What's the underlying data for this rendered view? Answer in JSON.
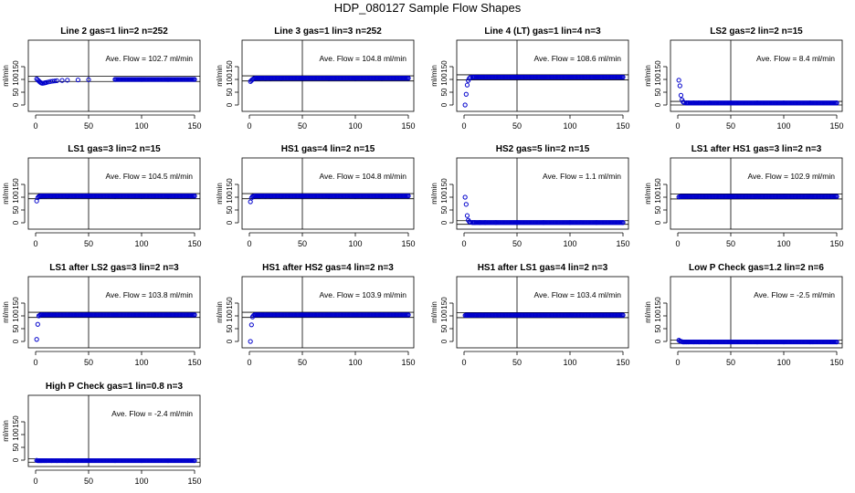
{
  "figure": {
    "title": "HDP_080127  Sample Flow Shapes"
  },
  "chart_data": [
    {
      "type": "scatter",
      "title": "Line 2 gas=1 lin=2 n=252",
      "ylabel": "ml/min",
      "annotation": "Ave. Flow =  102.7  ml/min",
      "xlim": [
        0,
        150
      ],
      "ylim": [
        -20,
        200
      ],
      "xticks": [
        0,
        50,
        100,
        150
      ],
      "yticks": [
        0,
        50,
        100,
        150
      ],
      "xticklabels": [
        "0",
        "50",
        "100",
        "150"
      ],
      "yticklabels": [
        "0",
        "50",
        "100",
        "150"
      ],
      "vline": 50,
      "hlines": [
        92,
        112
      ],
      "ave": 102.7,
      "series": [
        {
          "color": "#0000cc",
          "x": [
            1,
            2,
            3,
            4,
            5,
            6,
            7,
            8,
            9,
            10,
            12,
            14,
            16,
            18,
            20,
            25,
            30,
            40,
            50,
            75,
            100,
            125,
            150
          ],
          "y": [
            102,
            98,
            94,
            90,
            87,
            85,
            85,
            86,
            87,
            88,
            90,
            92,
            93,
            94,
            95,
            96,
            97,
            98,
            99,
            100,
            100,
            100,
            100
          ]
        }
      ]
    },
    {
      "type": "scatter",
      "title": "Line 3 gas=1 lin=3 n=252",
      "ylabel": "ml/min",
      "annotation": "Ave. Flow =  104.8  ml/min",
      "xlim": [
        0,
        150
      ],
      "ylim": [
        -20,
        200
      ],
      "xticks": [
        0,
        50,
        100,
        150
      ],
      "yticks": [
        0,
        50,
        100,
        150
      ],
      "xticklabels": [
        "0",
        "50",
        "100",
        "150"
      ],
      "yticklabels": [
        "0",
        "50",
        "100",
        "150"
      ],
      "vline": 50,
      "hlines": [
        94,
        114
      ],
      "ave": 104.8,
      "series": [
        {
          "color": "#0000cc",
          "x": [
            1,
            2,
            3,
            4,
            5,
            6,
            8,
            10,
            15,
            20,
            30,
            50,
            75,
            100,
            125,
            150
          ],
          "y": [
            92,
            96,
            100,
            103,
            104,
            105,
            105,
            105,
            105,
            105,
            105,
            105,
            105,
            105,
            105,
            105
          ]
        }
      ]
    },
    {
      "type": "scatter",
      "title": "Line 4 (LT) gas=1 lin=4 n=3",
      "ylabel": "ml/min",
      "annotation": "Ave. Flow =  108.6  ml/min",
      "xlim": [
        0,
        150
      ],
      "ylim": [
        -20,
        200
      ],
      "xticks": [
        0,
        50,
        100,
        150
      ],
      "yticks": [
        0,
        50,
        100,
        150
      ],
      "xticklabels": [
        "0",
        "50",
        "100",
        "150"
      ],
      "yticklabels": [
        "0",
        "50",
        "100",
        "150"
      ],
      "vline": 50,
      "hlines": [
        98,
        118
      ],
      "ave": 108.6,
      "series": [
        {
          "color": "#0000cc",
          "x": [
            1,
            2,
            3,
            4,
            5,
            6,
            8,
            10,
            15,
            20,
            30,
            50,
            75,
            100,
            125,
            150
          ],
          "y": [
            0,
            42,
            78,
            96,
            104,
            108,
            109,
            109,
            109,
            109,
            109,
            109,
            109,
            109,
            109,
            109
          ]
        }
      ]
    },
    {
      "type": "scatter",
      "title": "LS2 gas=2 lin=2 n=15",
      "ylabel": "ml/min",
      "annotation": "Ave. Flow =  8.4  ml/min",
      "xlim": [
        0,
        150
      ],
      "ylim": [
        -20,
        200
      ],
      "xticks": [
        0,
        50,
        100,
        150
      ],
      "yticks": [
        0,
        50,
        100,
        150
      ],
      "xticklabels": [
        "0",
        "50",
        "100",
        "150"
      ],
      "yticklabels": [
        "0",
        "50",
        "100",
        "150"
      ],
      "vline": 50,
      "hlines": [
        0,
        14
      ],
      "ave": 8.4,
      "series": [
        {
          "color": "#0000cc",
          "x": [
            1,
            2,
            3,
            4,
            5,
            6,
            8,
            10,
            15,
            20,
            30,
            50,
            75,
            100,
            125,
            150
          ],
          "y": [
            97,
            75,
            38,
            20,
            12,
            9,
            8,
            8,
            8,
            8,
            8,
            8,
            8,
            8,
            8,
            8
          ]
        }
      ]
    },
    {
      "type": "scatter",
      "title": "LS1 gas=3 lin=2 n=15",
      "ylabel": "ml/min",
      "annotation": "Ave. Flow =  104.5  ml/min",
      "xlim": [
        0,
        150
      ],
      "ylim": [
        -20,
        200
      ],
      "xticks": [
        0,
        50,
        100,
        150
      ],
      "yticks": [
        0,
        50,
        100,
        150
      ],
      "xticklabels": [
        "0",
        "50",
        "100",
        "150"
      ],
      "yticklabels": [
        "0",
        "50",
        "100",
        "150"
      ],
      "vline": 50,
      "hlines": [
        94,
        114
      ],
      "ave": 104.5,
      "series": [
        {
          "color": "#0000cc",
          "x": [
            1,
            2,
            3,
            4,
            5,
            6,
            8,
            10,
            15,
            20,
            30,
            50,
            75,
            100,
            125,
            150
          ],
          "y": [
            85,
            98,
            103,
            104,
            105,
            105,
            105,
            105,
            105,
            105,
            105,
            105,
            105,
            105,
            105,
            105
          ]
        }
      ]
    },
    {
      "type": "scatter",
      "title": "HS1 gas=4 lin=2 n=15",
      "ylabel": "ml/min",
      "annotation": "Ave. Flow =  104.8  ml/min",
      "xlim": [
        0,
        150
      ],
      "ylim": [
        -20,
        200
      ],
      "xticks": [
        0,
        50,
        100,
        150
      ],
      "yticks": [
        0,
        50,
        100,
        150
      ],
      "xticklabels": [
        "0",
        "50",
        "100",
        "150"
      ],
      "yticklabels": [
        "0",
        "50",
        "100",
        "150"
      ],
      "vline": 50,
      "hlines": [
        94,
        114
      ],
      "ave": 104.8,
      "series": [
        {
          "color": "#0000cc",
          "x": [
            1,
            2,
            3,
            4,
            5,
            6,
            8,
            10,
            15,
            20,
            30,
            50,
            75,
            100,
            125,
            150
          ],
          "y": [
            82,
            97,
            103,
            104,
            105,
            105,
            105,
            105,
            105,
            105,
            105,
            105,
            105,
            105,
            105,
            105
          ]
        }
      ]
    },
    {
      "type": "scatter",
      "title": "HS2 gas=5 lin=2 n=15",
      "ylabel": "ml/min",
      "annotation": "Ave. Flow =  1.1  ml/min",
      "xlim": [
        0,
        150
      ],
      "ylim": [
        -20,
        200
      ],
      "xticks": [
        0,
        50,
        100,
        150
      ],
      "yticks": [
        0,
        50,
        100,
        150
      ],
      "xticklabels": [
        "0",
        "50",
        "100",
        "150"
      ],
      "yticklabels": [
        "0",
        "50",
        "100",
        "150"
      ],
      "vline": 50,
      "hlines": [
        -6,
        8
      ],
      "ave": 1.1,
      "series": [
        {
          "color": "#0000cc",
          "x": [
            1,
            2,
            3,
            4,
            5,
            6,
            8,
            10,
            15,
            20,
            30,
            50,
            75,
            100,
            125,
            150
          ],
          "y": [
            100,
            72,
            28,
            10,
            4,
            2,
            1,
            1,
            1,
            1,
            1,
            1,
            1,
            1,
            1,
            1
          ]
        }
      ]
    },
    {
      "type": "scatter",
      "title": "LS1 after HS1 gas=3 lin=2 n=3",
      "ylabel": "ml/min",
      "annotation": "Ave. Flow =  102.9  ml/min",
      "xlim": [
        0,
        150
      ],
      "ylim": [
        -20,
        200
      ],
      "xticks": [
        0,
        50,
        100,
        150
      ],
      "yticks": [
        0,
        50,
        100,
        150
      ],
      "xticklabels": [
        "0",
        "50",
        "100",
        "150"
      ],
      "yticklabels": [
        "0",
        "50",
        "100",
        "150"
      ],
      "vline": 50,
      "hlines": [
        93,
        113
      ],
      "ave": 102.9,
      "series": [
        {
          "color": "#0000cc",
          "x": [
            1,
            2,
            3,
            4,
            5,
            6,
            8,
            10,
            15,
            20,
            30,
            50,
            75,
            100,
            125,
            150
          ],
          "y": [
            101,
            102,
            103,
            103,
            103,
            103,
            103,
            103,
            103,
            103,
            103,
            103,
            103,
            103,
            103,
            103
          ]
        }
      ]
    },
    {
      "type": "scatter",
      "title": "LS1 after LS2 gas=3 lin=2 n=3",
      "ylabel": "ml/min",
      "annotation": "Ave. Flow =  103.8  ml/min",
      "xlim": [
        0,
        150
      ],
      "ylim": [
        -20,
        200
      ],
      "xticks": [
        0,
        50,
        100,
        150
      ],
      "yticks": [
        0,
        50,
        100,
        150
      ],
      "xticklabels": [
        "0",
        "50",
        "100",
        "150"
      ],
      "yticklabels": [
        "0",
        "50",
        "100",
        "150"
      ],
      "vline": 50,
      "hlines": [
        94,
        114
      ],
      "ave": 103.8,
      "series": [
        {
          "color": "#0000cc",
          "x": [
            1,
            2,
            3,
            4,
            5,
            6,
            8,
            10,
            15,
            20,
            30,
            50,
            75,
            100,
            125,
            150
          ],
          "y": [
            8,
            67,
            100,
            103,
            104,
            104,
            104,
            104,
            104,
            104,
            104,
            104,
            104,
            104,
            104,
            104
          ]
        }
      ]
    },
    {
      "type": "scatter",
      "title": "HS1 after HS2 gas=4 lin=2 n=3",
      "ylabel": "ml/min",
      "annotation": "Ave. Flow =  103.9  ml/min",
      "xlim": [
        0,
        150
      ],
      "ylim": [
        -20,
        200
      ],
      "xticks": [
        0,
        50,
        100,
        150
      ],
      "yticks": [
        0,
        50,
        100,
        150
      ],
      "xticklabels": [
        "0",
        "50",
        "100",
        "150"
      ],
      "yticklabels": [
        "0",
        "50",
        "100",
        "150"
      ],
      "vline": 50,
      "hlines": [
        94,
        114
      ],
      "ave": 103.9,
      "series": [
        {
          "color": "#0000cc",
          "x": [
            1,
            2,
            3,
            4,
            5,
            6,
            8,
            10,
            15,
            20,
            30,
            50,
            75,
            100,
            125,
            150
          ],
          "y": [
            0,
            65,
            96,
            102,
            104,
            104,
            104,
            104,
            104,
            104,
            104,
            104,
            104,
            104,
            104,
            104
          ]
        }
      ]
    },
    {
      "type": "scatter",
      "title": "HS1 after LS1 gas=4 lin=2 n=3",
      "ylabel": "ml/min",
      "annotation": "Ave. Flow =  103.4  ml/min",
      "xlim": [
        0,
        150
      ],
      "ylim": [
        -20,
        200
      ],
      "xticks": [
        0,
        50,
        100,
        150
      ],
      "yticks": [
        0,
        50,
        100,
        150
      ],
      "xticklabels": [
        "0",
        "50",
        "100",
        "150"
      ],
      "yticklabels": [
        "0",
        "50",
        "100",
        "150"
      ],
      "vline": 50,
      "hlines": [
        93,
        113
      ],
      "ave": 103.4,
      "series": [
        {
          "color": "#0000cc",
          "x": [
            1,
            2,
            3,
            4,
            5,
            6,
            8,
            10,
            15,
            20,
            30,
            50,
            75,
            100,
            125,
            150
          ],
          "y": [
            102,
            103,
            103,
            103,
            103,
            103,
            103,
            103,
            103,
            103,
            103,
            103,
            103,
            103,
            103,
            103
          ]
        }
      ]
    },
    {
      "type": "scatter",
      "title": "Low P Check gas=1.2 lin=2 n=6",
      "ylabel": "ml/min",
      "annotation": "Ave. Flow =  -2.5  ml/min",
      "xlim": [
        0,
        150
      ],
      "ylim": [
        -20,
        200
      ],
      "xticks": [
        0,
        50,
        100,
        150
      ],
      "yticks": [
        0,
        50,
        100,
        150
      ],
      "xticklabels": [
        "0",
        "50",
        "100",
        "150"
      ],
      "yticklabels": [
        "0",
        "50",
        "100",
        "150"
      ],
      "vline": 50,
      "hlines": [
        -8,
        5
      ],
      "ave": -2.5,
      "series": [
        {
          "color": "#0000cc",
          "x": [
            1,
            2,
            3,
            4,
            5,
            6,
            8,
            10,
            15,
            20,
            30,
            50,
            75,
            100,
            125,
            150
          ],
          "y": [
            5,
            2,
            0,
            -1,
            -2,
            -2,
            -2,
            -2,
            -2,
            -2,
            -2,
            -2,
            -2,
            -2,
            -2,
            -2
          ]
        }
      ]
    },
    {
      "type": "scatter",
      "title": "High P Check gas=1 lin=0.8 n=3",
      "ylabel": "ml/min",
      "annotation": "Ave. Flow =  -2.4  ml/min",
      "xlim": [
        0,
        150
      ],
      "ylim": [
        -20,
        200
      ],
      "xticks": [
        0,
        50,
        100,
        150
      ],
      "yticks": [
        0,
        50,
        100,
        150
      ],
      "xticklabels": [
        "0",
        "50",
        "100",
        "150"
      ],
      "yticklabels": [
        "0",
        "50",
        "100",
        "150"
      ],
      "vline": 50,
      "hlines": [
        -8,
        5
      ],
      "ave": -2.4,
      "series": [
        {
          "color": "#0000cc",
          "x": [
            1,
            2,
            3,
            4,
            5,
            6,
            8,
            10,
            15,
            20,
            30,
            50,
            75,
            100,
            125,
            150
          ],
          "y": [
            -1,
            -2,
            -2,
            -2,
            -2,
            -2,
            -2,
            -2,
            -2,
            -2,
            -2,
            -2,
            -2,
            -2,
            -2,
            -2
          ]
        }
      ]
    }
  ]
}
